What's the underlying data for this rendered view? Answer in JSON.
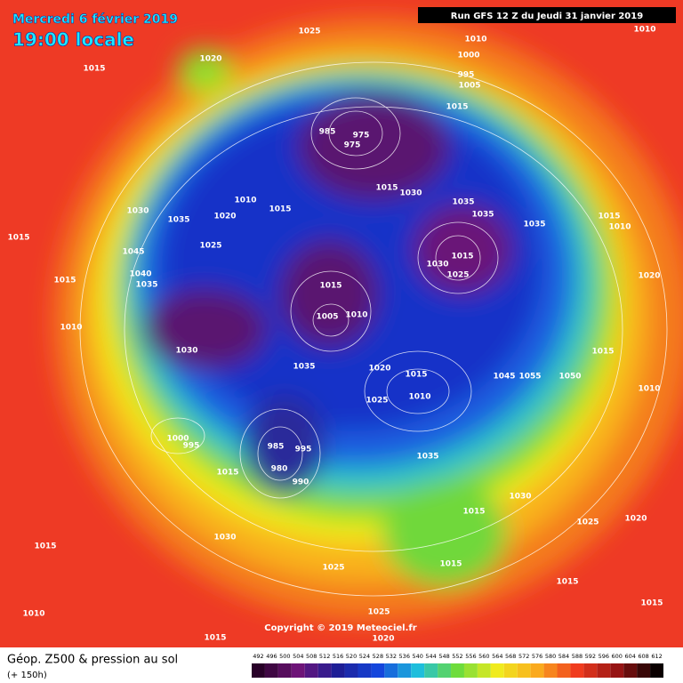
{
  "header": {
    "date": "Mercredi 6 février 2019",
    "time": "19:00 locale",
    "run": "Run GFS 12 Z du Jeudi 31 janvier 2019"
  },
  "map": {
    "copyright": "Copyright © 2019 Meteociel.fr",
    "pressure_labels": [
      1025,
      1010,
      1010,
      1020,
      1015,
      1000,
      995,
      1005,
      1015,
      975,
      985,
      975,
      1015,
      1030,
      1010,
      1015,
      1030,
      1035,
      1020,
      1035,
      1035,
      1035,
      1015,
      1010,
      1015,
      1025,
      1045,
      1030,
      1015,
      1025,
      1040,
      1035,
      1015,
      1015,
      1020,
      1005,
      1010,
      1010,
      1030,
      1035,
      1020,
      1015,
      1010,
      1025,
      1045,
      1055,
      1050,
      1015,
      1010,
      1000,
      995,
      985,
      995,
      980,
      990,
      1015,
      1035,
      1030,
      1015,
      1025,
      1020,
      1030,
      1015,
      1025,
      1015,
      1015,
      1025,
      1010,
      1020,
      1015,
      1015
    ]
  },
  "footer": {
    "title": "Géop. Z500 & pression au sol",
    "lead": "(+ 150h)",
    "scale": [
      492,
      496,
      500,
      504,
      508,
      512,
      516,
      520,
      524,
      528,
      532,
      536,
      540,
      544,
      548,
      552,
      556,
      560,
      564,
      568,
      572,
      576,
      580,
      584,
      588,
      592,
      596,
      600,
      604,
      608,
      612
    ]
  }
}
